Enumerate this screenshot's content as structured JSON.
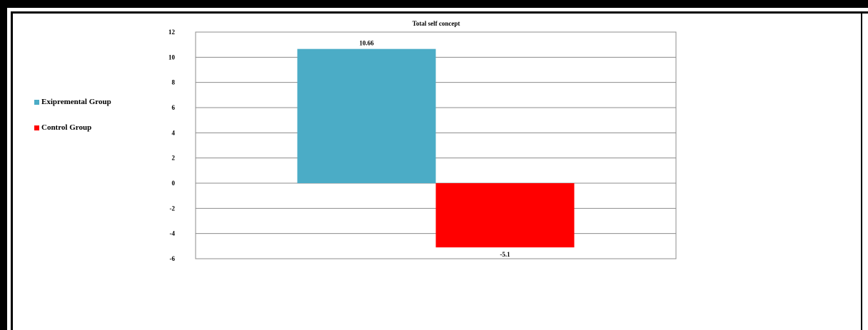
{
  "chart_data": {
    "type": "bar",
    "title": "Total self concept",
    "categories": [
      ""
    ],
    "series": [
      {
        "name": "Exipremental Group",
        "values": [
          10.66
        ],
        "label": "10.66",
        "color": "#4BACC6"
      },
      {
        "name": "Control Group",
        "values": [
          -5.1
        ],
        "label": "-5.1",
        "color": "#FF0000"
      }
    ],
    "ylim": [
      -6,
      12
    ],
    "yticks": [
      "12",
      "10",
      "8",
      "6",
      "4",
      "2",
      "0",
      "-2",
      "-4",
      "-6"
    ],
    "grid": true,
    "legend_position": "left"
  }
}
